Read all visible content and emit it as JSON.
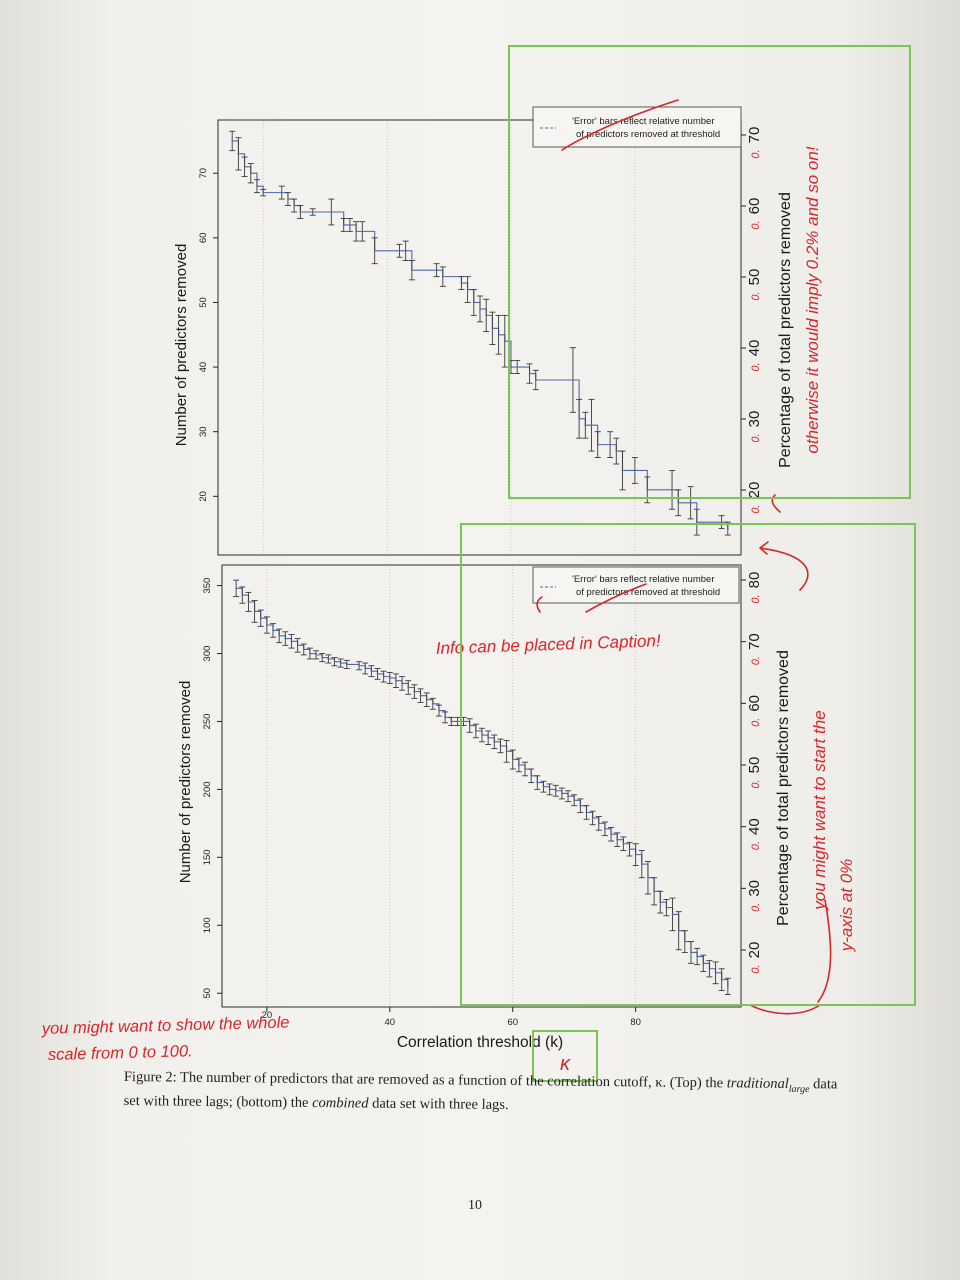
{
  "figure": {
    "top_panel": {
      "ylabel": "Number of predictors removed",
      "right_axis_label": "Percentage of total predictors removed",
      "y_ticks": [
        "20",
        "30",
        "40",
        "50",
        "60",
        "70"
      ],
      "right_ticks": [
        "20",
        "30",
        "40",
        "50",
        "60",
        "70"
      ],
      "right_tick_prefix": "0.",
      "legend_line1": "'Error' bars reflect relative number",
      "legend_line2": "of predictors removed at threshold"
    },
    "bottom_panel": {
      "ylabel": "Number of predictors removed",
      "right_axis_label": "Percentage of total predictors removed",
      "y_ticks": [
        "50",
        "100",
        "150",
        "200",
        "250",
        "300",
        "350"
      ],
      "right_ticks": [
        "20",
        "30",
        "40",
        "50",
        "60",
        "70",
        "80"
      ],
      "right_tick_prefix": "0.",
      "legend_line1": "'Error' bars reflect relative number",
      "legend_line2": "of predictors removed at threshold"
    },
    "x_ticks": [
      "20",
      "40",
      "60",
      "80"
    ],
    "xlabel": "Correlation threshold (k)"
  },
  "caption": {
    "label": "Figure 2:",
    "text_1": " The number of predictors that are removed as a function of the correlation cutoff, κ. (Top) the ",
    "italic_1": "traditional",
    "sub_1": "large",
    "text_2": " data set with three lags; (bottom) the ",
    "italic_2": "combined",
    "text_3": " data set with three lags."
  },
  "page_number": "10",
  "annotations": {
    "top_right_note_line1": "otherwise it would imply 0.2% and so on!",
    "legend_note": "Info can be placed in Caption!",
    "bottom_right_note_line1": "you might want to start the",
    "bottom_right_note_line2": "y-axis at 0%",
    "left_note_line1": "you might want to show the whole",
    "left_note_line2": "scale from 0 to 100.",
    "kappa_note": "κ"
  },
  "colors": {
    "series": "#4f68a8",
    "ink": "#d8262b",
    "highlight_box": "#7cc553"
  },
  "chart_data": [
    {
      "type": "line",
      "title": "",
      "xlabel": "Correlation threshold (k)",
      "ylabel": "Number of predictors removed",
      "secondary_ylabel": "Percentage of total predictors removed",
      "xlim": [
        14,
        96
      ],
      "ylim": [
        12,
        77
      ],
      "x_ticks": [
        20,
        40,
        60,
        80
      ],
      "y_ticks": [
        20,
        30,
        40,
        50,
        60,
        70
      ],
      "grid": "vertical dotted",
      "legend_position": "top-right",
      "series": [
        {
          "name": "",
          "x": [
            15,
            16,
            17,
            18,
            19,
            20,
            23,
            24,
            25,
            26,
            28,
            31,
            33,
            34,
            35,
            36,
            38,
            42,
            43,
            44,
            48,
            49,
            52,
            53,
            54,
            55,
            56,
            57,
            58,
            59,
            60,
            61,
            63,
            64,
            70,
            71,
            72,
            73,
            74,
            76,
            77,
            78,
            80,
            82,
            86,
            87,
            89,
            90,
            94,
            95
          ],
          "y": [
            75,
            73,
            71,
            70,
            68,
            67,
            67,
            66,
            65,
            64,
            64,
            64,
            62,
            62,
            61,
            61,
            58,
            58,
            58,
            55,
            55,
            54,
            53,
            52,
            50,
            49,
            48,
            46,
            45,
            44,
            40,
            40,
            39,
            38,
            38,
            32,
            31,
            31,
            28,
            28,
            27,
            24,
            24,
            21,
            21,
            19,
            19,
            16,
            16,
            15
          ],
          "error": [
            1.5,
            2.5,
            1.5,
            1.5,
            1,
            0.5,
            1,
            1,
            1,
            1,
            0.5,
            2,
            1,
            1,
            1.5,
            1.5,
            2,
            1,
            1.5,
            1.5,
            1,
            1.5,
            1,
            2,
            2,
            2,
            2.5,
            2.5,
            3,
            4,
            1,
            1,
            1.5,
            1.5,
            5,
            3,
            2,
            4,
            2,
            2,
            2,
            3,
            2,
            2,
            3,
            2,
            2.5,
            2,
            1,
            1
          ]
        }
      ]
    },
    {
      "type": "line",
      "title": "",
      "xlabel": "Correlation threshold (k)",
      "ylabel": "Number of predictors removed",
      "secondary_ylabel": "Percentage of total predictors removed",
      "xlim": [
        14,
        96
      ],
      "ylim": [
        45,
        360
      ],
      "x_ticks": [
        20,
        40,
        60,
        80
      ],
      "y_ticks": [
        50,
        100,
        150,
        200,
        250,
        300,
        350
      ],
      "grid": "vertical dotted",
      "legend_position": "top-right",
      "series": [
        {
          "name": "",
          "x": [
            15,
            16,
            17,
            18,
            19,
            20,
            21,
            22,
            23,
            24,
            25,
            26,
            27,
            28,
            29,
            30,
            31,
            32,
            33,
            35,
            36,
            37,
            38,
            39,
            40,
            41,
            42,
            43,
            44,
            45,
            46,
            47,
            48,
            49,
            50,
            51,
            52,
            53,
            54,
            55,
            56,
            57,
            58,
            59,
            60,
            61,
            62,
            63,
            64,
            65,
            66,
            67,
            68,
            69,
            70,
            71,
            72,
            73,
            74,
            75,
            76,
            77,
            78,
            79,
            80,
            81,
            82,
            83,
            84,
            85,
            86,
            87,
            88,
            89,
            90,
            91,
            92,
            93,
            94,
            95
          ],
          "y": [
            348,
            343,
            338,
            331,
            326,
            321,
            317,
            313,
            311,
            309,
            306,
            303,
            300,
            299,
            297,
            296,
            294,
            293,
            292,
            291,
            289,
            287,
            285,
            283,
            282,
            280,
            278,
            275,
            272,
            269,
            266,
            263,
            258,
            253,
            250,
            250,
            250,
            247,
            243,
            240,
            238,
            235,
            232,
            228,
            222,
            218,
            215,
            210,
            205,
            202,
            200,
            199,
            197,
            195,
            192,
            188,
            183,
            179,
            175,
            171,
            167,
            163,
            160,
            156,
            152,
            145,
            135,
            125,
            117,
            113,
            108,
            96,
            88,
            80,
            77,
            72,
            68,
            65,
            60,
            55
          ],
          "error": [
            6,
            6,
            7,
            8,
            6,
            6,
            5,
            5,
            5,
            5,
            5,
            4,
            4,
            3,
            3,
            3,
            3,
            3,
            3,
            3,
            4,
            4,
            4,
            4,
            4,
            5,
            5,
            5,
            5,
            5,
            5,
            4,
            4,
            4,
            3,
            3,
            3,
            5,
            5,
            5,
            5,
            5,
            5,
            8,
            7,
            5,
            5,
            5,
            5,
            4,
            4,
            4,
            4,
            4,
            4,
            5,
            5,
            5,
            5,
            5,
            5,
            5,
            5,
            5,
            8,
            10,
            12,
            10,
            8,
            6,
            12,
            14,
            8,
            8,
            6,
            6,
            6,
            8,
            8,
            6
          ]
        }
      ]
    }
  ]
}
